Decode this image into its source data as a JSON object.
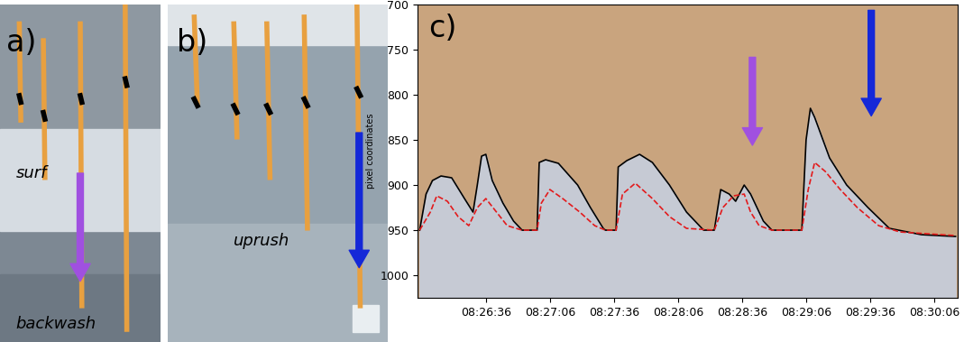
{
  "photos": [
    {
      "label": "a)",
      "texts": [
        "surf",
        "backwash"
      ]
    },
    {
      "label": "b)",
      "texts": [
        "uprush"
      ]
    }
  ],
  "chart_data": {
    "type": "line",
    "title": "c)",
    "y_label": "pixel coordinates",
    "xlim": [
      30364,
      30617
    ],
    "xticks": [
      {
        "value": 30396,
        "label": "08:26:36"
      },
      {
        "value": 30426,
        "label": "08:27:06"
      },
      {
        "value": 30456,
        "label": "08:27:36"
      },
      {
        "value": 30486,
        "label": "08:28:06"
      },
      {
        "value": 30516,
        "label": "08:28:36"
      },
      {
        "value": 30546,
        "label": "08:29:06"
      },
      {
        "value": 30576,
        "label": "08:29:36"
      },
      {
        "value": 30606,
        "label": "08:30:06"
      }
    ],
    "ylim": [
      1025,
      700
    ],
    "yticks": [
      700,
      750,
      800,
      850,
      900,
      950,
      1000
    ],
    "series": [
      {
        "color": "#000000",
        "line_style": "solid",
        "x": [
          30365,
          30368,
          30371,
          30375,
          30380,
          30386,
          30390,
          30392,
          30394,
          30396,
          30399,
          30404,
          30409,
          30413,
          30420,
          30421,
          30424,
          30430,
          30439,
          30445,
          30451,
          30452,
          30457,
          30458,
          30462,
          30468,
          30474,
          30482,
          30490,
          30498,
          30503,
          30506,
          30510,
          30513,
          30517,
          30520,
          30526,
          30530,
          30544,
          30546,
          30548,
          30550,
          30557,
          30565,
          30575,
          30585,
          30600,
          30616
        ],
        "values": [
          950,
          910,
          895,
          890,
          892,
          915,
          930,
          900,
          868,
          866,
          895,
          920,
          940,
          950,
          950,
          875,
          872,
          876,
          900,
          925,
          948,
          950,
          950,
          880,
          873,
          866,
          875,
          900,
          930,
          950,
          950,
          905,
          910,
          918,
          900,
          910,
          940,
          950,
          950,
          850,
          815,
          825,
          870,
          900,
          925,
          948,
          955,
          957
        ]
      },
      {
        "color": "#e31a1c",
        "line_style": "dashed",
        "x": [
          30365,
          30370,
          30373,
          30378,
          30383,
          30388,
          30392,
          30396,
          30401,
          30406,
          30413,
          30420,
          30422,
          30426,
          30432,
          30440,
          30447,
          30452,
          30457,
          30460,
          30466,
          30474,
          30482,
          30490,
          30503,
          30507,
          30512,
          30517,
          30520,
          30524,
          30530,
          30544,
          30547,
          30550,
          30555,
          30562,
          30570,
          30580,
          30590,
          30616
        ],
        "values": [
          950,
          930,
          912,
          918,
          935,
          945,
          925,
          915,
          930,
          945,
          950,
          950,
          920,
          905,
          915,
          930,
          945,
          950,
          950,
          910,
          898,
          915,
          935,
          948,
          950,
          925,
          912,
          910,
          930,
          945,
          950,
          950,
          905,
          875,
          885,
          905,
          925,
          945,
          952,
          956
        ]
      }
    ]
  }
}
